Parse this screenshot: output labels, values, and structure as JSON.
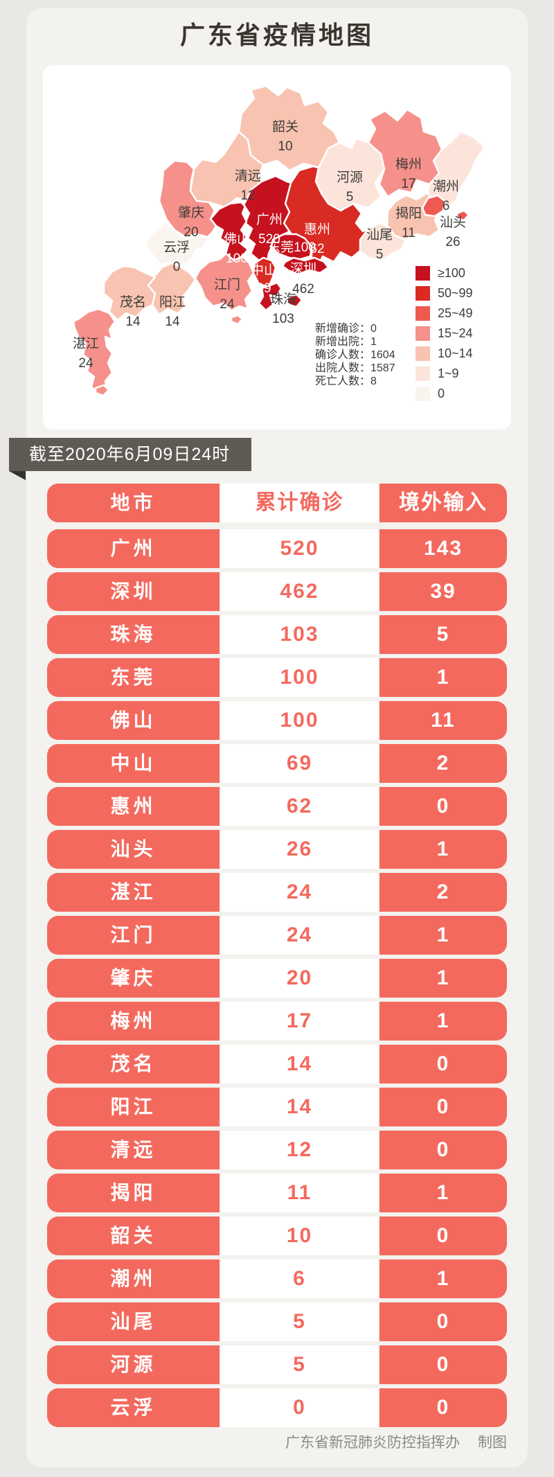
{
  "title": "广东省疫情地图",
  "date_banner": "截至2020年6月09日24时",
  "footer": {
    "org": "广东省新冠肺炎防控指挥办",
    "label": "制图"
  },
  "map_panel": {
    "stats_lines": [
      "新增确诊：0",
      "新增出院：1",
      "确诊人数：1604",
      "出院人数：1587",
      "死亡人数：8"
    ]
  },
  "legend": [
    {
      "key": "b100",
      "label": "≥100",
      "color": "#c6121f"
    },
    {
      "key": "b50",
      "label": "50~99",
      "color": "#d92a23"
    },
    {
      "key": "b25",
      "label": "25~49",
      "color": "#ee5a50"
    },
    {
      "key": "b15",
      "label": "15~24",
      "color": "#f5918a"
    },
    {
      "key": "b10",
      "label": "10~14",
      "color": "#f8c3b0"
    },
    {
      "key": "b1",
      "label": "1~9",
      "color": "#fce4da"
    },
    {
      "key": "b0",
      "label": "0",
      "color": "#faf4ee"
    }
  ],
  "map": {
    "cities": [
      {
        "name": "韶关",
        "value": "10"
      },
      {
        "name": "清远",
        "value": "12"
      },
      {
        "name": "河源",
        "value": "5"
      },
      {
        "name": "梅州",
        "value": "17"
      },
      {
        "name": "潮州",
        "value": "6"
      },
      {
        "name": "揭阳",
        "value": "11"
      },
      {
        "name": "汕头",
        "value": "26"
      },
      {
        "name": "汕尾",
        "value": "5"
      },
      {
        "name": "惠州",
        "value": "62"
      },
      {
        "name": "广州",
        "value": "520"
      },
      {
        "name": "佛山",
        "value": "100"
      },
      {
        "name": "东莞",
        "value": "100"
      },
      {
        "name": "深圳",
        "value": "462"
      },
      {
        "name": "中山",
        "value": "69"
      },
      {
        "name": "珠海",
        "value": "103"
      },
      {
        "name": "江门",
        "value": "24"
      },
      {
        "name": "肇庆",
        "value": "20"
      },
      {
        "name": "云浮",
        "value": "0"
      },
      {
        "name": "阳江",
        "value": "14"
      },
      {
        "name": "茂名",
        "value": "14"
      },
      {
        "name": "湛江",
        "value": "24"
      }
    ]
  },
  "table": {
    "headers": [
      "地市",
      "累计确诊",
      "境外输入"
    ],
    "rows": [
      [
        "广州",
        "520",
        "143"
      ],
      [
        "深圳",
        "462",
        "39"
      ],
      [
        "珠海",
        "103",
        "5"
      ],
      [
        "东莞",
        "100",
        "1"
      ],
      [
        "佛山",
        "100",
        "11"
      ],
      [
        "中山",
        "69",
        "2"
      ],
      [
        "惠州",
        "62",
        "0"
      ],
      [
        "汕头",
        "26",
        "1"
      ],
      [
        "湛江",
        "24",
        "2"
      ],
      [
        "江门",
        "24",
        "1"
      ],
      [
        "肇庆",
        "20",
        "1"
      ],
      [
        "梅州",
        "17",
        "1"
      ],
      [
        "茂名",
        "14",
        "0"
      ],
      [
        "阳江",
        "14",
        "0"
      ],
      [
        "清远",
        "12",
        "0"
      ],
      [
        "揭阳",
        "11",
        "1"
      ],
      [
        "韶关",
        "10",
        "0"
      ],
      [
        "潮州",
        "6",
        "1"
      ],
      [
        "汕尾",
        "5",
        "0"
      ],
      [
        "河源",
        "5",
        "0"
      ],
      [
        "云浮",
        "0",
        "0"
      ]
    ]
  },
  "theme": {
    "page_bg": "#eae8e4",
    "card_bg": "#f3f2ee",
    "accent_red": "#f4695e",
    "title_underline": "#f5493d",
    "ribbon_bg": "#5d5b53",
    "ribbon_fold": "#33322c",
    "footer_color": "#8b8a86",
    "map_label_dark": "#3c3c3a",
    "title_color": "#38362f",
    "stat_color": "#3a3936"
  },
  "chart_data": [
    {
      "type": "heatmap",
      "subtype": "choropleth-province-map",
      "title": "广东省疫情地图",
      "as_of": "截至2020年6月09日24时",
      "regions": [
        {
          "name": "广州",
          "confirmed": 520
        },
        {
          "name": "深圳",
          "confirmed": 462
        },
        {
          "name": "珠海",
          "confirmed": 103
        },
        {
          "name": "东莞",
          "confirmed": 100
        },
        {
          "name": "佛山",
          "confirmed": 100
        },
        {
          "name": "中山",
          "confirmed": 69
        },
        {
          "name": "惠州",
          "confirmed": 62
        },
        {
          "name": "汕头",
          "confirmed": 26
        },
        {
          "name": "湛江",
          "confirmed": 24
        },
        {
          "name": "江门",
          "confirmed": 24
        },
        {
          "name": "肇庆",
          "confirmed": 20
        },
        {
          "name": "梅州",
          "confirmed": 17
        },
        {
          "name": "茂名",
          "confirmed": 14
        },
        {
          "name": "阳江",
          "confirmed": 14
        },
        {
          "name": "清远",
          "confirmed": 12
        },
        {
          "name": "揭阳",
          "confirmed": 11
        },
        {
          "name": "韶关",
          "confirmed": 10
        },
        {
          "name": "潮州",
          "confirmed": 6
        },
        {
          "name": "汕尾",
          "confirmed": 5
        },
        {
          "name": "河源",
          "confirmed": 5
        },
        {
          "name": "云浮",
          "confirmed": 0
        }
      ],
      "legend_buckets": [
        "≥100",
        "50~99",
        "25~49",
        "15~24",
        "10~14",
        "1~9",
        "0"
      ],
      "legend_position": "bottom-right",
      "annotations": {
        "新增确诊": 0,
        "新增出院": 1,
        "确诊人数": 1604,
        "出院人数": 1587,
        "死亡人数": 8
      }
    },
    {
      "type": "table",
      "columns": [
        "地市",
        "累计确诊",
        "境外输入"
      ],
      "rows": [
        [
          "广州",
          520,
          143
        ],
        [
          "深圳",
          462,
          39
        ],
        [
          "珠海",
          103,
          5
        ],
        [
          "东莞",
          100,
          1
        ],
        [
          "佛山",
          100,
          11
        ],
        [
          "中山",
          69,
          2
        ],
        [
          "惠州",
          62,
          0
        ],
        [
          "汕头",
          26,
          1
        ],
        [
          "湛江",
          24,
          2
        ],
        [
          "江门",
          24,
          1
        ],
        [
          "肇庆",
          20,
          1
        ],
        [
          "梅州",
          17,
          1
        ],
        [
          "茂名",
          14,
          0
        ],
        [
          "阳江",
          14,
          0
        ],
        [
          "清远",
          12,
          0
        ],
        [
          "揭阳",
          11,
          1
        ],
        [
          "韶关",
          10,
          0
        ],
        [
          "潮州",
          6,
          1
        ],
        [
          "汕尾",
          5,
          0
        ],
        [
          "河源",
          5,
          0
        ],
        [
          "云浮",
          0,
          0
        ]
      ]
    }
  ]
}
